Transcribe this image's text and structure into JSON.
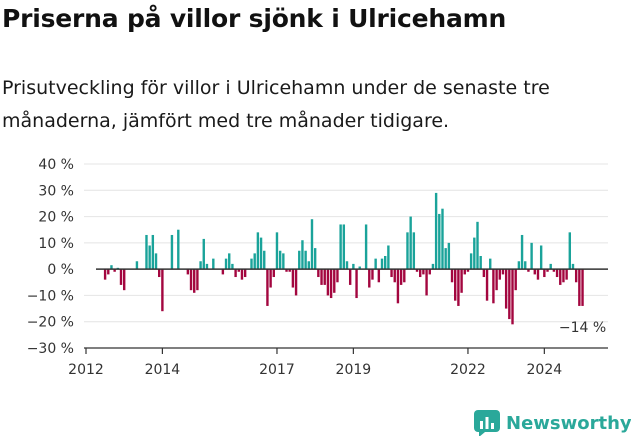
{
  "title": "Priserna på villor sjönk i Ulricehamn",
  "subtitle": "Prisutveckling för villor i Ulricehamn under de senaste tre månaderna, jämfört med tre månader tidigare.",
  "brand": {
    "name": "Newsworthy",
    "icon": "bar-chart-icon",
    "color": "#2aa89a"
  },
  "chart_data": {
    "type": "bar",
    "colors": {
      "positive": "#1aa39a",
      "negative": "#a3063f",
      "axis": "#333333"
    },
    "ylim": [
      -30,
      40
    ],
    "y_ticks": [
      {
        "value": 40,
        "label": "40 %"
      },
      {
        "value": 30,
        "label": "30 %"
      },
      {
        "value": 20,
        "label": "20 %"
      },
      {
        "value": 10,
        "label": "10 %"
      },
      {
        "value": 0,
        "label": "0 %"
      },
      {
        "value": -10,
        "label": "−10 %"
      },
      {
        "value": -20,
        "label": "−20 %"
      },
      {
        "value": -30,
        "label": "−30 %"
      }
    ],
    "x_range": [
      "2012-01",
      "2025-09"
    ],
    "x_ticks": [
      {
        "date": "2012-01",
        "label": "2012"
      },
      {
        "date": "2014-01",
        "label": "2014"
      },
      {
        "date": "2017-01",
        "label": "2017"
      },
      {
        "date": "2019-01",
        "label": "2019"
      },
      {
        "date": "2022-01",
        "label": "2022"
      },
      {
        "date": "2024-01",
        "label": "2024"
      }
    ],
    "annotation": {
      "date": "2025-01",
      "value": -14,
      "label": "−14 %"
    },
    "points": [
      {
        "date": "2012-07",
        "value": -4
      },
      {
        "date": "2012-08",
        "value": -2
      },
      {
        "date": "2012-09",
        "value": 1.5
      },
      {
        "date": "2012-10",
        "value": -1
      },
      {
        "date": "2012-11",
        "value": 0.5
      },
      {
        "date": "2012-12",
        "value": -6
      },
      {
        "date": "2013-01",
        "value": -8
      },
      {
        "date": "2013-05",
        "value": 3
      },
      {
        "date": "2013-08",
        "value": 13
      },
      {
        "date": "2013-09",
        "value": 9
      },
      {
        "date": "2013-10",
        "value": 13
      },
      {
        "date": "2013-11",
        "value": 6
      },
      {
        "date": "2013-12",
        "value": -3
      },
      {
        "date": "2014-01",
        "value": -16
      },
      {
        "date": "2014-04",
        "value": 13
      },
      {
        "date": "2014-06",
        "value": 15
      },
      {
        "date": "2014-09",
        "value": -2
      },
      {
        "date": "2014-10",
        "value": -8
      },
      {
        "date": "2014-11",
        "value": -9
      },
      {
        "date": "2014-12",
        "value": -8
      },
      {
        "date": "2015-01",
        "value": 3
      },
      {
        "date": "2015-02",
        "value": 11.5
      },
      {
        "date": "2015-03",
        "value": 2
      },
      {
        "date": "2015-05",
        "value": 4
      },
      {
        "date": "2015-08",
        "value": -2
      },
      {
        "date": "2015-09",
        "value": 4
      },
      {
        "date": "2015-10",
        "value": 6
      },
      {
        "date": "2015-11",
        "value": 2
      },
      {
        "date": "2015-12",
        "value": -3
      },
      {
        "date": "2016-01",
        "value": -1
      },
      {
        "date": "2016-02",
        "value": -4
      },
      {
        "date": "2016-03",
        "value": -3
      },
      {
        "date": "2016-05",
        "value": 4
      },
      {
        "date": "2016-06",
        "value": 6
      },
      {
        "date": "2016-07",
        "value": 14
      },
      {
        "date": "2016-08",
        "value": 12
      },
      {
        "date": "2016-09",
        "value": 7
      },
      {
        "date": "2016-10",
        "value": -14
      },
      {
        "date": "2016-11",
        "value": -7
      },
      {
        "date": "2016-12",
        "value": -3
      },
      {
        "date": "2017-01",
        "value": 14
      },
      {
        "date": "2017-02",
        "value": 7
      },
      {
        "date": "2017-03",
        "value": 6
      },
      {
        "date": "2017-04",
        "value": -1
      },
      {
        "date": "2017-05",
        "value": -1
      },
      {
        "date": "2017-06",
        "value": -7
      },
      {
        "date": "2017-07",
        "value": -10
      },
      {
        "date": "2017-08",
        "value": 7
      },
      {
        "date": "2017-09",
        "value": 11
      },
      {
        "date": "2017-10",
        "value": 7
      },
      {
        "date": "2017-11",
        "value": 3
      },
      {
        "date": "2017-12",
        "value": 19
      },
      {
        "date": "2018-01",
        "value": 8
      },
      {
        "date": "2018-02",
        "value": -3
      },
      {
        "date": "2018-03",
        "value": -6
      },
      {
        "date": "2018-04",
        "value": -6
      },
      {
        "date": "2018-05",
        "value": -10
      },
      {
        "date": "2018-06",
        "value": -11
      },
      {
        "date": "2018-07",
        "value": -9
      },
      {
        "date": "2018-08",
        "value": -5
      },
      {
        "date": "2018-09",
        "value": 17
      },
      {
        "date": "2018-10",
        "value": 17
      },
      {
        "date": "2018-11",
        "value": 3
      },
      {
        "date": "2018-12",
        "value": -6
      },
      {
        "date": "2019-01",
        "value": 2
      },
      {
        "date": "2019-02",
        "value": -11
      },
      {
        "date": "2019-03",
        "value": 1
      },
      {
        "date": "2019-05",
        "value": 17
      },
      {
        "date": "2019-06",
        "value": -7
      },
      {
        "date": "2019-07",
        "value": -4
      },
      {
        "date": "2019-08",
        "value": 4
      },
      {
        "date": "2019-09",
        "value": -5
      },
      {
        "date": "2019-10",
        "value": 4
      },
      {
        "date": "2019-11",
        "value": 5
      },
      {
        "date": "2019-12",
        "value": 9
      },
      {
        "date": "2020-01",
        "value": -3
      },
      {
        "date": "2020-02",
        "value": -5
      },
      {
        "date": "2020-03",
        "value": -13
      },
      {
        "date": "2020-04",
        "value": -6
      },
      {
        "date": "2020-05",
        "value": -5
      },
      {
        "date": "2020-06",
        "value": 14
      },
      {
        "date": "2020-07",
        "value": 20
      },
      {
        "date": "2020-08",
        "value": 14
      },
      {
        "date": "2020-09",
        "value": -1
      },
      {
        "date": "2020-10",
        "value": -3
      },
      {
        "date": "2020-11",
        "value": -2
      },
      {
        "date": "2020-12",
        "value": -10
      },
      {
        "date": "2021-01",
        "value": -2
      },
      {
        "date": "2021-02",
        "value": 2
      },
      {
        "date": "2021-03",
        "value": 29
      },
      {
        "date": "2021-04",
        "value": 21
      },
      {
        "date": "2021-05",
        "value": 23
      },
      {
        "date": "2021-06",
        "value": 8
      },
      {
        "date": "2021-07",
        "value": 10
      },
      {
        "date": "2021-08",
        "value": -5
      },
      {
        "date": "2021-09",
        "value": -12
      },
      {
        "date": "2021-10",
        "value": -14
      },
      {
        "date": "2021-11",
        "value": -9
      },
      {
        "date": "2021-12",
        "value": -2
      },
      {
        "date": "2022-01",
        "value": -1
      },
      {
        "date": "2022-02",
        "value": 6
      },
      {
        "date": "2022-03",
        "value": 12
      },
      {
        "date": "2022-04",
        "value": 18
      },
      {
        "date": "2022-05",
        "value": 5
      },
      {
        "date": "2022-06",
        "value": -3
      },
      {
        "date": "2022-07",
        "value": -12
      },
      {
        "date": "2022-08",
        "value": 4
      },
      {
        "date": "2022-09",
        "value": -13
      },
      {
        "date": "2022-10",
        "value": -8
      },
      {
        "date": "2022-11",
        "value": -4
      },
      {
        "date": "2022-12",
        "value": -2
      },
      {
        "date": "2023-01",
        "value": -15
      },
      {
        "date": "2023-02",
        "value": -19
      },
      {
        "date": "2023-03",
        "value": -21
      },
      {
        "date": "2023-04",
        "value": -8
      },
      {
        "date": "2023-05",
        "value": 3
      },
      {
        "date": "2023-06",
        "value": 13
      },
      {
        "date": "2023-07",
        "value": 3
      },
      {
        "date": "2023-08",
        "value": -1
      },
      {
        "date": "2023-09",
        "value": 10
      },
      {
        "date": "2023-10",
        "value": -2
      },
      {
        "date": "2023-11",
        "value": -4
      },
      {
        "date": "2023-12",
        "value": 9
      },
      {
        "date": "2024-01",
        "value": -3
      },
      {
        "date": "2024-02",
        "value": -1
      },
      {
        "date": "2024-03",
        "value": 2
      },
      {
        "date": "2024-04",
        "value": -1
      },
      {
        "date": "2024-05",
        "value": -3
      },
      {
        "date": "2024-06",
        "value": -6
      },
      {
        "date": "2024-07",
        "value": -5
      },
      {
        "date": "2024-08",
        "value": -4
      },
      {
        "date": "2024-09",
        "value": 14
      },
      {
        "date": "2024-10",
        "value": 2
      },
      {
        "date": "2024-11",
        "value": -5
      },
      {
        "date": "2024-12",
        "value": -14
      },
      {
        "date": "2025-01",
        "value": -14
      }
    ]
  }
}
